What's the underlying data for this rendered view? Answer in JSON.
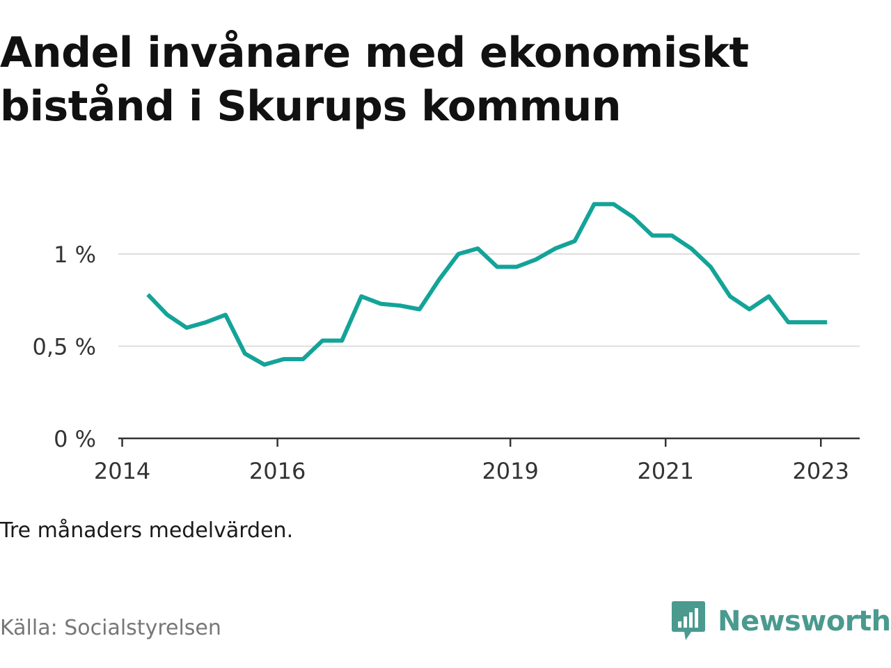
{
  "title": "Andel invånare med ekonomiskt bistånd i Skurups kommun",
  "subtitle": "Tre månaders medelvärden.",
  "source": "Källa: Socialstyrelsen",
  "logo": {
    "text": "Newsworthy",
    "icon": "chat-bar-chart-icon"
  },
  "colors": {
    "line": "#14a398",
    "grid": "#dddddd",
    "axis": "#333333",
    "logo": "#4a9a8e"
  },
  "chart_data": {
    "type": "line",
    "title": "Andel invånare med ekonomiskt bistånd i Skurups kommun",
    "xlabel": "",
    "ylabel": "",
    "ylim": [
      0,
      1.4
    ],
    "yticks": [
      {
        "value": 0,
        "label": "0 %"
      },
      {
        "value": 0.5,
        "label": "0,5 %"
      },
      {
        "value": 1,
        "label": "1 %"
      }
    ],
    "xticks": [
      {
        "value": 2014.0,
        "label": "2014"
      },
      {
        "value": 2016.0,
        "label": "2016"
      },
      {
        "value": 2019.0,
        "label": "2019"
      },
      {
        "value": 2021.0,
        "label": "2021"
      },
      {
        "value": 2023.0,
        "label": "2023"
      }
    ],
    "xlim": [
      2013.95,
      2023.5
    ],
    "grid": true,
    "series": [
      {
        "x": [
          2014.33,
          2014.58,
          2014.83,
          2015.08,
          2015.33,
          2015.58,
          2015.83,
          2016.08,
          2016.33,
          2016.58,
          2016.83,
          2017.08,
          2017.33,
          2017.58,
          2017.83,
          2018.08,
          2018.33,
          2018.58,
          2018.83,
          2019.08,
          2019.33,
          2019.58,
          2019.83,
          2020.08,
          2020.33,
          2020.58,
          2020.83,
          2021.08,
          2021.33,
          2021.58,
          2021.83,
          2022.08,
          2022.33,
          2022.58,
          2022.83,
          2023.08
        ],
        "values": [
          0.78,
          0.67,
          0.6,
          0.63,
          0.67,
          0.46,
          0.4,
          0.43,
          0.43,
          0.53,
          0.53,
          0.77,
          0.73,
          0.72,
          0.7,
          0.86,
          1.0,
          1.03,
          0.93,
          0.93,
          0.97,
          1.03,
          1.07,
          1.27,
          1.27,
          1.2,
          1.1,
          1.1,
          1.03,
          0.93,
          0.77,
          0.7,
          0.77,
          0.63,
          0.63,
          0.63
        ]
      }
    ]
  }
}
